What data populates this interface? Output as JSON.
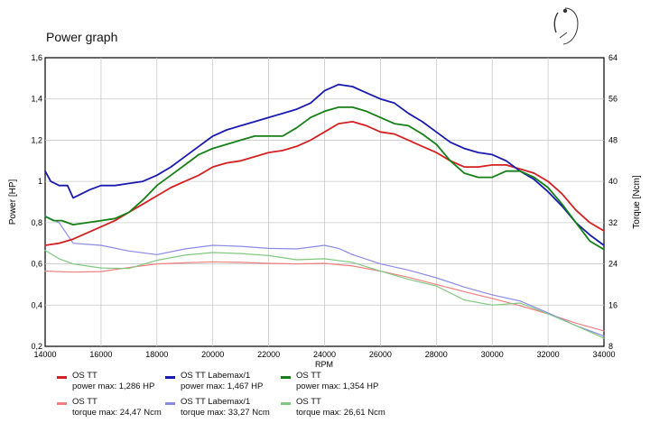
{
  "title": "Power graph",
  "logo_icon": "labema-logo-icon",
  "chart_data": {
    "type": "line",
    "xlabel": "RPM",
    "ylabel_left": "Power [HP]",
    "ylabel_right": "Torque [Ncm]",
    "xlim": [
      14000,
      34000
    ],
    "ylim_left": [
      0.2,
      1.6
    ],
    "ylim_right": [
      8,
      64
    ],
    "xticks": [
      "14000",
      "16000",
      "18000",
      "20000",
      "22000",
      "24000",
      "26000",
      "28000",
      "30000",
      "32000",
      "34000"
    ],
    "yticks_left": [
      "0,2",
      "0,4",
      "0,6",
      "0,8",
      "1",
      "1,2",
      "1,4",
      "1,6"
    ],
    "yticks_right": [
      "8",
      "16",
      "24",
      "32",
      "40",
      "48",
      "56",
      "64"
    ],
    "grid": true,
    "legend_position": "bottom",
    "series": [
      {
        "name": "OS TT",
        "stat": "power max: 1,286 HP",
        "axis": "left",
        "color": "#d42020",
        "width": 1.8,
        "x": [
          14000,
          14500,
          15000,
          15500,
          16000,
          16500,
          17000,
          17500,
          18000,
          18500,
          19000,
          19500,
          20000,
          20500,
          21000,
          21500,
          22000,
          22500,
          23000,
          23500,
          24000,
          24500,
          25000,
          25500,
          26000,
          26500,
          27000,
          27500,
          28000,
          28500,
          29000,
          29500,
          30000,
          30500,
          31000,
          31500,
          32000,
          32500,
          33000,
          33500,
          34000
        ],
        "y": [
          0.69,
          0.7,
          0.72,
          0.75,
          0.78,
          0.81,
          0.85,
          0.89,
          0.93,
          0.97,
          1.0,
          1.03,
          1.07,
          1.09,
          1.1,
          1.12,
          1.14,
          1.15,
          1.17,
          1.2,
          1.24,
          1.28,
          1.29,
          1.27,
          1.24,
          1.23,
          1.2,
          1.17,
          1.14,
          1.1,
          1.07,
          1.07,
          1.08,
          1.08,
          1.06,
          1.04,
          1.0,
          0.94,
          0.86,
          0.8,
          0.76
        ]
      },
      {
        "name": "OS TT Labemax/1",
        "stat": "power max: 1,467 HP",
        "axis": "left",
        "color": "#1a1ab0",
        "width": 1.8,
        "x": [
          14000,
          14200,
          14500,
          14800,
          15000,
          15300,
          15600,
          16000,
          16500,
          17000,
          17500,
          18000,
          18500,
          19000,
          19500,
          20000,
          20500,
          21000,
          21500,
          22000,
          22500,
          23000,
          23500,
          24000,
          24500,
          25000,
          25500,
          26000,
          26500,
          27000,
          27500,
          28000,
          28500,
          29000,
          29500,
          30000,
          30500,
          31000,
          31500,
          32000,
          32500,
          33000,
          33500,
          34000
        ],
        "y": [
          1.05,
          1.0,
          0.98,
          0.98,
          0.92,
          0.94,
          0.96,
          0.98,
          0.98,
          0.99,
          1.0,
          1.03,
          1.07,
          1.12,
          1.17,
          1.22,
          1.25,
          1.27,
          1.29,
          1.31,
          1.33,
          1.35,
          1.38,
          1.44,
          1.47,
          1.46,
          1.43,
          1.4,
          1.38,
          1.33,
          1.29,
          1.24,
          1.19,
          1.16,
          1.14,
          1.13,
          1.1,
          1.05,
          1.01,
          0.95,
          0.88,
          0.8,
          0.74,
          0.69
        ]
      },
      {
        "name": "OS TT",
        "stat": "power max: 1,354 HP",
        "axis": "left",
        "color": "#158015",
        "width": 1.8,
        "x": [
          14000,
          14300,
          14600,
          15000,
          15500,
          16000,
          16500,
          17000,
          17500,
          18000,
          18500,
          19000,
          19500,
          20000,
          20500,
          21000,
          21500,
          22000,
          22500,
          23000,
          23500,
          24000,
          24500,
          25000,
          25500,
          26000,
          26500,
          27000,
          27500,
          28000,
          28500,
          29000,
          29500,
          30000,
          30500,
          31000,
          31500,
          32000,
          32500,
          33000,
          33500,
          34000
        ],
        "y": [
          0.83,
          0.81,
          0.81,
          0.79,
          0.8,
          0.81,
          0.82,
          0.85,
          0.91,
          0.98,
          1.03,
          1.08,
          1.13,
          1.16,
          1.18,
          1.2,
          1.22,
          1.22,
          1.22,
          1.26,
          1.31,
          1.34,
          1.36,
          1.36,
          1.34,
          1.31,
          1.28,
          1.27,
          1.23,
          1.18,
          1.1,
          1.04,
          1.02,
          1.02,
          1.05,
          1.05,
          1.02,
          0.97,
          0.89,
          0.8,
          0.71,
          0.67
        ]
      },
      {
        "name": "OS TT",
        "stat": "torque max: 24,47 Ncm",
        "axis": "right",
        "color": "#f08080",
        "width": 1.2,
        "x": [
          14000,
          15000,
          16000,
          17000,
          18000,
          19000,
          20000,
          21000,
          22000,
          23000,
          24000,
          25000,
          26000,
          27000,
          28000,
          29000,
          30000,
          31000,
          32000,
          33000,
          34000
        ],
        "y": [
          22.6,
          22.4,
          22.5,
          23.3,
          24.0,
          24.2,
          24.4,
          24.3,
          24.1,
          24.0,
          24.1,
          23.6,
          22.6,
          21.4,
          20.0,
          18.6,
          17.3,
          15.9,
          14.3,
          12.5,
          11.0
        ]
      },
      {
        "name": "OS TT Labemax/1",
        "stat": "torque max: 33,27 Ncm",
        "axis": "right",
        "color": "#8a8ae8",
        "width": 1.2,
        "x": [
          14000,
          14500,
          15000,
          15500,
          16000,
          17000,
          18000,
          19000,
          20000,
          21000,
          22000,
          23000,
          24000,
          24500,
          25000,
          26000,
          27000,
          28000,
          29000,
          30000,
          31000,
          32000,
          33000,
          34000
        ],
        "y": [
          33.3,
          32.0,
          28.0,
          27.8,
          27.6,
          26.5,
          25.8,
          26.9,
          27.6,
          27.4,
          27.0,
          26.9,
          27.6,
          27.0,
          25.8,
          24.0,
          22.8,
          21.3,
          19.5,
          18.0,
          16.8,
          14.5,
          12.0,
          10.0
        ]
      },
      {
        "name": "OS TT",
        "stat": "torque max: 26,61 Ncm",
        "axis": "right",
        "color": "#80c880",
        "width": 1.2,
        "x": [
          14000,
          14500,
          15000,
          16000,
          17000,
          18000,
          19000,
          20000,
          21000,
          22000,
          23000,
          24000,
          25000,
          26000,
          27000,
          28000,
          29000,
          30000,
          31000,
          32000,
          33000,
          34000
        ],
        "y": [
          26.6,
          25.0,
          24.0,
          23.2,
          23.1,
          24.7,
          25.7,
          26.2,
          26.0,
          25.6,
          24.8,
          25.0,
          24.3,
          22.6,
          21.0,
          19.7,
          17.0,
          16.0,
          16.4,
          14.3,
          12.0,
          9.6
        ]
      }
    ]
  }
}
